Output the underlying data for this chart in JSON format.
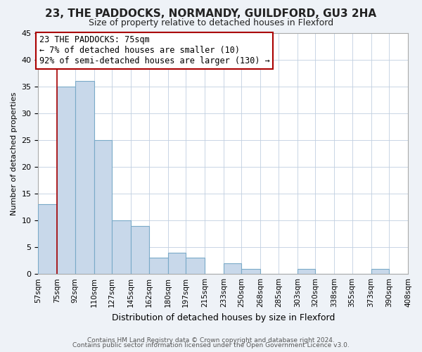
{
  "title1": "23, THE PADDOCKS, NORMANDY, GUILDFORD, GU3 2HA",
  "title2": "Size of property relative to detached houses in Flexford",
  "xlabel": "Distribution of detached houses by size in Flexford",
  "ylabel": "Number of detached properties",
  "bins": [
    57,
    75,
    92,
    110,
    127,
    145,
    162,
    180,
    197,
    215,
    233,
    250,
    268,
    285,
    303,
    320,
    338,
    355,
    373,
    390,
    408
  ],
  "counts": [
    13,
    35,
    36,
    25,
    10,
    9,
    3,
    4,
    3,
    0,
    2,
    1,
    0,
    0,
    1,
    0,
    0,
    0,
    1,
    0
  ],
  "bin_labels": [
    "57sqm",
    "75sqm",
    "92sqm",
    "110sqm",
    "127sqm",
    "145sqm",
    "162sqm",
    "180sqm",
    "197sqm",
    "215sqm",
    "233sqm",
    "250sqm",
    "268sqm",
    "285sqm",
    "303sqm",
    "320sqm",
    "338sqm",
    "355sqm",
    "373sqm",
    "390sqm",
    "408sqm"
  ],
  "bar_color": "#c8d8ea",
  "bar_edge_color": "#7aaac8",
  "property_line_x": 75,
  "property_line_color": "#aa0000",
  "ylim": [
    0,
    45
  ],
  "yticks": [
    0,
    5,
    10,
    15,
    20,
    25,
    30,
    35,
    40,
    45
  ],
  "annotation_line1": "23 THE PADDOCKS: 75sqm",
  "annotation_line2": "← 7% of detached houses are smaller (10)",
  "annotation_line3": "92% of semi-detached houses are larger (130) →",
  "footer1": "Contains HM Land Registry data © Crown copyright and database right 2024.",
  "footer2": "Contains public sector information licensed under the Open Government Licence v3.0.",
  "background_color": "#eef2f7",
  "plot_bg_color": "#ffffff",
  "grid_color": "#c0cfe0",
  "title1_fontsize": 11,
  "title2_fontsize": 9,
  "ylabel_fontsize": 8,
  "xlabel_fontsize": 9,
  "tick_fontsize": 7.5,
  "annotation_fontsize": 8.5
}
